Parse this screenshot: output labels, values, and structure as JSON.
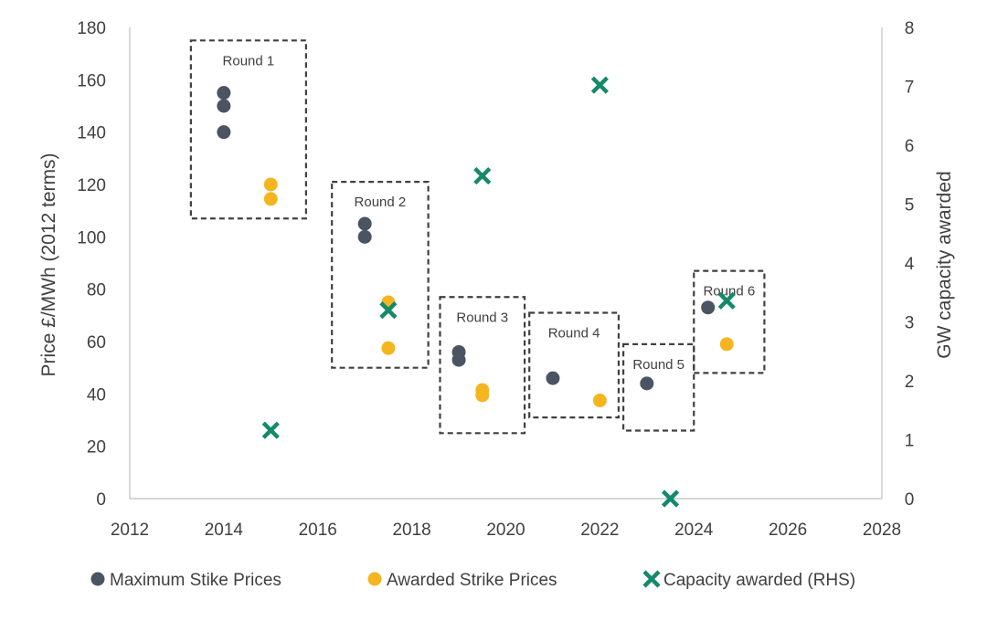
{
  "chart_data": {
    "type": "scatter",
    "x_axis": {
      "min": 2012,
      "max": 2028,
      "ticks": [
        2012,
        2014,
        2016,
        2018,
        2020,
        2022,
        2024,
        2026,
        2028
      ]
    },
    "y_axis_left": {
      "label": "Price £/MWh (2012 terms)",
      "min": 0,
      "max": 180,
      "ticks": [
        0,
        20,
        40,
        60,
        80,
        100,
        120,
        140,
        160,
        180
      ]
    },
    "y_axis_right": {
      "label": "GW capacity awarded",
      "min": 0,
      "max": 8,
      "ticks": [
        0,
        1,
        2,
        3,
        4,
        5,
        6,
        7,
        8
      ]
    },
    "grid": false,
    "legend_position": "bottom",
    "series": [
      {
        "name": "Maximum Stike Prices",
        "marker": "circle",
        "color": "#4a5462",
        "axis": "left",
        "points": [
          {
            "x": 2014.0,
            "y": 155
          },
          {
            "x": 2014.0,
            "y": 150
          },
          {
            "x": 2014.0,
            "y": 140
          },
          {
            "x": 2017.0,
            "y": 105
          },
          {
            "x": 2017.0,
            "y": 100
          },
          {
            "x": 2019.0,
            "y": 56
          },
          {
            "x": 2019.0,
            "y": 53
          },
          {
            "x": 2021.0,
            "y": 46
          },
          {
            "x": 2023.0,
            "y": 44
          },
          {
            "x": 2024.3,
            "y": 73
          }
        ]
      },
      {
        "name": "Awarded Strike Prices",
        "marker": "circle",
        "color": "#f5b520",
        "axis": "left",
        "points": [
          {
            "x": 2015.0,
            "y": 120
          },
          {
            "x": 2015.0,
            "y": 114.5
          },
          {
            "x": 2017.5,
            "y": 75
          },
          {
            "x": 2017.5,
            "y": 57.5
          },
          {
            "x": 2019.5,
            "y": 41.5
          },
          {
            "x": 2019.5,
            "y": 39.5
          },
          {
            "x": 2022.0,
            "y": 37.5
          },
          {
            "x": 2024.7,
            "y": 59
          }
        ]
      },
      {
        "name": "Capacity awarded (RHS)",
        "marker": "x",
        "color": "#148a6a",
        "axis": "right",
        "points": [
          {
            "x": 2015.0,
            "y": 1.16
          },
          {
            "x": 2017.5,
            "y": 3.2
          },
          {
            "x": 2019.5,
            "y": 5.48
          },
          {
            "x": 2022.0,
            "y": 7.02
          },
          {
            "x": 2023.5,
            "y": 0.0
          },
          {
            "x": 2024.7,
            "y": 3.36
          }
        ]
      }
    ],
    "annotations": [
      {
        "label": "Round 1",
        "x0": 2013.3,
        "x1": 2015.75,
        "y0": 107,
        "y1": 175
      },
      {
        "label": "Round 2",
        "x0": 2016.3,
        "x1": 2018.35,
        "y0": 50,
        "y1": 121
      },
      {
        "label": "Round 3",
        "x0": 2018.6,
        "x1": 2020.4,
        "y0": 25,
        "y1": 77
      },
      {
        "label": "Round 4",
        "x0": 2020.5,
        "x1": 2022.4,
        "y0": 31,
        "y1": 71
      },
      {
        "label": "Round 5",
        "x0": 2022.5,
        "x1": 2024.0,
        "y0": 26,
        "y1": 59
      },
      {
        "label": "Round 6",
        "x0": 2024.0,
        "x1": 2025.5,
        "y0": 48,
        "y1": 87
      }
    ]
  }
}
